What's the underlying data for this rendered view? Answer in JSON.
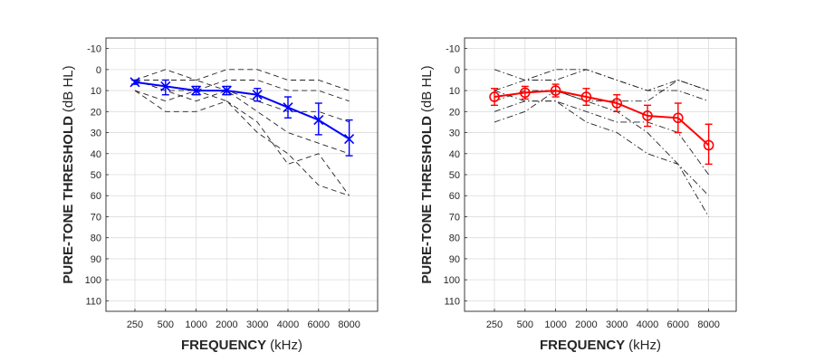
{
  "chart_data": [
    {
      "type": "line",
      "title": "",
      "xlabel_bold": "FREQUENCY",
      "xlabel_unit": "(kHz)",
      "ylabel_bold": "PURE-TONE THRESHOLD",
      "ylabel_unit": "(dB HL)",
      "categories": [
        "250",
        "500",
        "1000",
        "2000",
        "3000",
        "4000",
        "6000",
        "8000"
      ],
      "yticks": [
        -10,
        0,
        10,
        20,
        30,
        40,
        50,
        60,
        70,
        80,
        90,
        100,
        110
      ],
      "ylim": [
        -15,
        115
      ],
      "y_reversed": true,
      "grid": true,
      "mean_series": {
        "color": "#0000ff",
        "marker": "x",
        "values": [
          6,
          8,
          10,
          10,
          12,
          18,
          24,
          33
        ],
        "error_low": [
          5,
          5,
          8,
          8,
          9,
          13,
          16,
          24
        ],
        "error_high": [
          7,
          12,
          12,
          12,
          15,
          23,
          31,
          41
        ]
      },
      "individual_series_style": "dashed",
      "individual_series": [
        [
          5,
          5,
          5,
          10,
          15,
          20,
          20,
          25
        ],
        [
          5,
          10,
          10,
          5,
          5,
          10,
          10,
          15
        ],
        [
          5,
          0,
          5,
          0,
          0,
          5,
          5,
          10
        ],
        [
          10,
          20,
          20,
          15,
          25,
          45,
          40,
          60
        ],
        [
          10,
          15,
          10,
          15,
          30,
          40,
          55,
          60
        ],
        [
          5,
          10,
          15,
          10,
          20,
          30,
          35,
          40
        ]
      ]
    },
    {
      "type": "line",
      "title": "",
      "xlabel_bold": "FREQUENCY",
      "xlabel_unit": "(kHz)",
      "ylabel_bold": "PURE-TONE THRESHOLD",
      "ylabel_unit": "(dB HL)",
      "categories": [
        "250",
        "500",
        "1000",
        "2000",
        "3000",
        "4000",
        "6000",
        "8000"
      ],
      "yticks": [
        -10,
        0,
        10,
        20,
        30,
        40,
        50,
        60,
        70,
        80,
        90,
        100,
        110
      ],
      "ylim": [
        -15,
        115
      ],
      "y_reversed": true,
      "grid": true,
      "mean_series": {
        "color": "#ff0000",
        "marker": "o",
        "values": [
          13,
          11,
          10,
          13,
          16,
          22,
          23,
          36
        ],
        "error_low": [
          9,
          8,
          7,
          9,
          12,
          17,
          16,
          26
        ],
        "error_high": [
          17,
          14,
          13,
          17,
          20,
          27,
          30,
          45
        ]
      },
      "individual_series_style": "dashdot",
      "individual_series": [
        [
          0,
          5,
          5,
          0,
          5,
          10,
          5,
          10
        ],
        [
          10,
          5,
          0,
          0,
          5,
          10,
          10,
          15
        ],
        [
          15,
          10,
          10,
          15,
          15,
          15,
          5,
          10
        ],
        [
          20,
          15,
          15,
          25,
          30,
          40,
          45,
          60
        ],
        [
          25,
          20,
          10,
          15,
          20,
          30,
          45,
          70
        ],
        [
          10,
          15,
          15,
          20,
          25,
          25,
          30,
          50
        ]
      ]
    }
  ]
}
